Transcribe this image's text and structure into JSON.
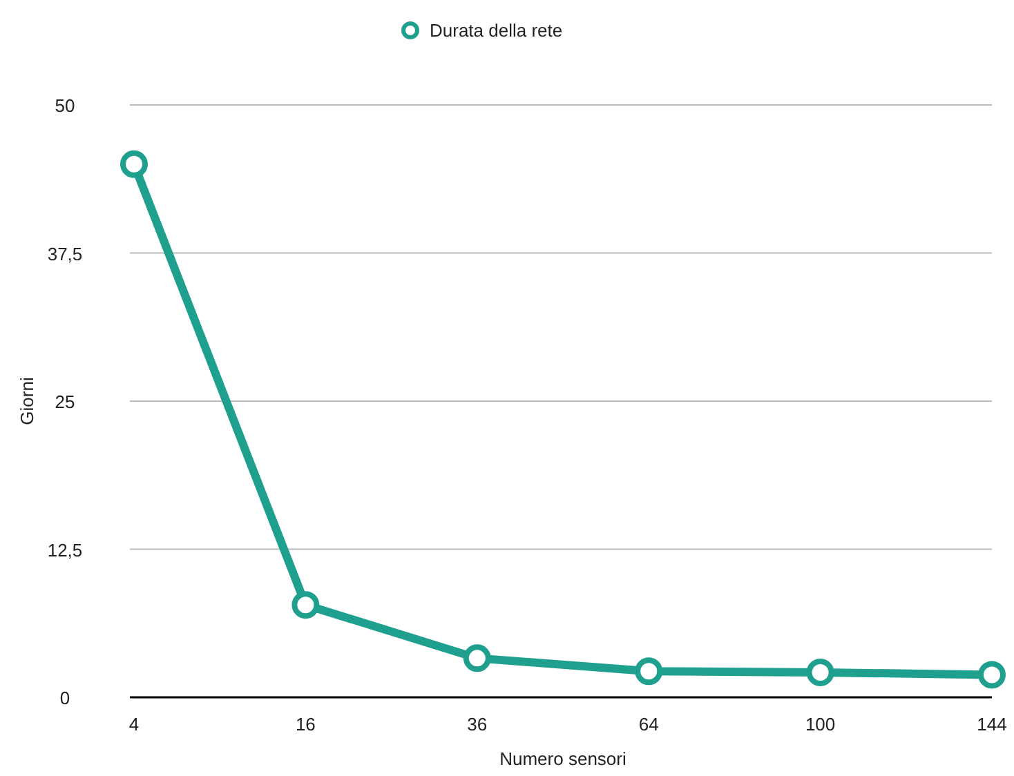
{
  "chart_data": {
    "type": "line",
    "xlabel": "Numero sensori",
    "ylabel": "Giorni",
    "categories": [
      "4",
      "16",
      "36",
      "64",
      "100",
      "144"
    ],
    "series": [
      {
        "name": "Durata della rete",
        "color": "#1fa08f",
        "values": [
          45,
          7.8,
          3.3,
          2.2,
          2.1,
          1.9
        ]
      }
    ],
    "ylim": [
      0,
      50
    ],
    "yticks": [
      0,
      {
        "value": 12.5,
        "label": "12,5"
      },
      25,
      {
        "value": 37.5,
        "label": "37,5"
      },
      50
    ],
    "grid": "y",
    "legend": "top",
    "marker": "circle",
    "line_style": "solid"
  }
}
